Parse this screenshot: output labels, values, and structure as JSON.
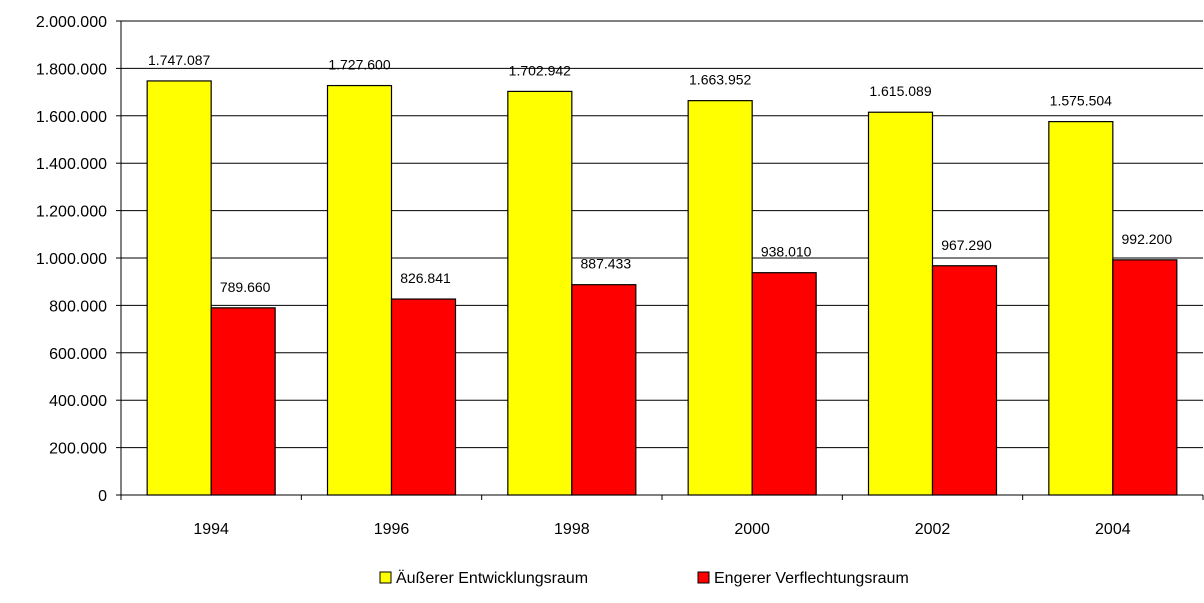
{
  "chart_data": {
    "type": "bar",
    "title": "",
    "xlabel": "",
    "ylabel": "",
    "categories": [
      "1994",
      "1996",
      "1998",
      "2000",
      "2002",
      "2004"
    ],
    "series": [
      {
        "name": "Äußerer Entwicklungsraum",
        "values": [
          1747087,
          1727600,
          1702942,
          1663952,
          1615089,
          1575504
        ],
        "labels": [
          "1.747.087",
          "1.727.600",
          "1.702.942",
          "1.663.952",
          "1.615.089",
          "1.575.504"
        ],
        "color": "#ffff00"
      },
      {
        "name": "Engerer Verflechtungsraum",
        "values": [
          789660,
          826841,
          887433,
          938010,
          967290,
          992200
        ],
        "labels": [
          "789.660",
          "826.841",
          "887.433",
          "938.010",
          "967.290",
          "992.200"
        ],
        "color": "#ff0000"
      }
    ],
    "ylim": [
      0,
      2000000
    ],
    "yticks": [
      0,
      200000,
      400000,
      600000,
      800000,
      1000000,
      1200000,
      1400000,
      1600000,
      1800000,
      2000000
    ],
    "ytick_labels": [
      "0",
      "200.000",
      "400.000",
      "600.000",
      "800.000",
      "1.000.000",
      "1.200.000",
      "1.400.000",
      "1.600.000",
      "1.800.000",
      "2.000.000"
    ],
    "grid": true,
    "legend": "bottom"
  }
}
